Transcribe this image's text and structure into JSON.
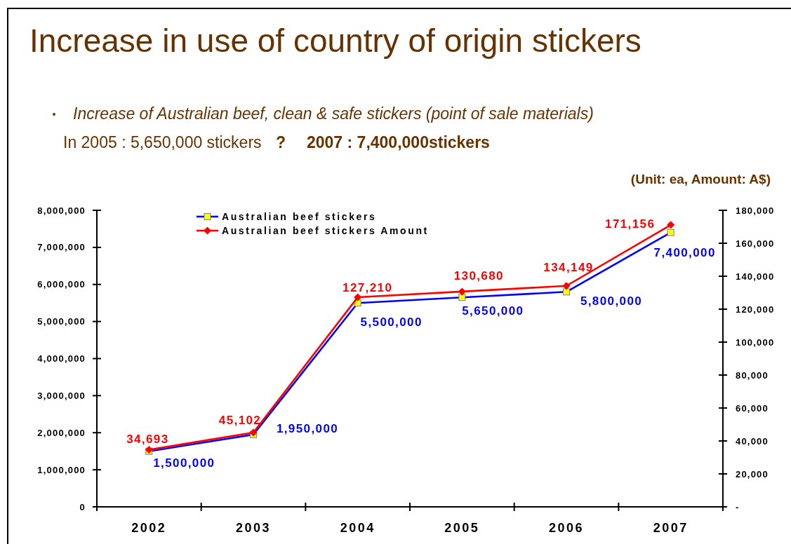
{
  "chart_data": {
    "type": "line",
    "title": "Increase in use of country of origin stickers",
    "subtitle": "Increase of Australian beef, clean & safe stickers (point of sale materials)",
    "annotations": [
      "In 2005 : 5,650,000 stickers",
      "?",
      "2007 : 7,400,000stickers",
      "(Unit: ea, Amount: A$)"
    ],
    "categories": [
      "2002",
      "2003",
      "2004",
      "2005",
      "2006",
      "2007"
    ],
    "series": [
      {
        "name": "Australian beef stickers",
        "color": "#0000ff",
        "marker": "square",
        "values": [
          1500000,
          1950000,
          5500000,
          5650000,
          5800000,
          7400000
        ],
        "value_labels": [
          "1,500,000",
          "1,950,000",
          "5,500,000",
          "5,650,000",
          "5,800,000",
          "7,400,000"
        ]
      },
      {
        "name": "Australian beef stickers Amount",
        "color": "#ff0000",
        "marker": "diamond",
        "axis": "y2",
        "values": [
          34693,
          45102,
          127210,
          130680,
          134149,
          171156
        ],
        "value_labels": [
          "34,693",
          "45,102",
          "127,210",
          "130,680",
          "134,149",
          "171,156"
        ]
      }
    ],
    "ylim": [
      0,
      8000000
    ],
    "yticks": [
      0,
      {
        "value": 1000000,
        "label": "1,000,000"
      },
      {
        "value": 2000000,
        "label": "2,000,000"
      },
      {
        "value": 3000000,
        "label": "3,000,000"
      },
      {
        "value": 4000000,
        "label": "4,000,000"
      },
      {
        "value": 5000000,
        "label": "5,000,000"
      },
      {
        "value": 6000000,
        "label": "6,000,000"
      },
      {
        "value": 7000000,
        "label": "7,000,000"
      },
      {
        "value": 8000000,
        "label": "8,000,000"
      }
    ],
    "y2lim": [
      0,
      180000
    ],
    "y2ticks": [
      {
        "value": 0,
        "label": "-"
      },
      {
        "value": 20000,
        "label": "20,000"
      },
      {
        "value": 40000,
        "label": "40,000"
      },
      {
        "value": 60000,
        "label": "60,000"
      },
      {
        "value": 80000,
        "label": "80,000"
      },
      {
        "value": 100000,
        "label": "100,000"
      },
      {
        "value": 120000,
        "label": "120,000"
      },
      {
        "value": 140000,
        "label": "140,000"
      },
      {
        "value": 160000,
        "label": "160,000"
      },
      {
        "value": 180000,
        "label": "180,000"
      }
    ],
    "legend": "top",
    "line_style": "solid"
  }
}
